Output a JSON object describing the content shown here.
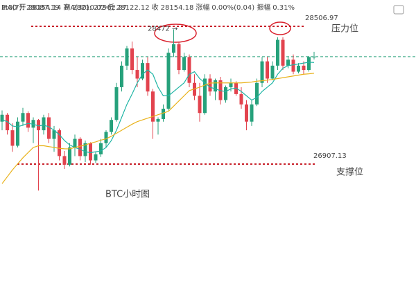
{
  "chart_data": {
    "type": "candlestick",
    "header": {
      "time": "2:00",
      "fields": [
        {
          "label": "开",
          "value": 28154.14
        },
        {
          "label": "高",
          "value": 28210.02
        },
        {
          "label": "低",
          "value": 28122.12
        },
        {
          "label": "收",
          "value": 28154.18
        },
        {
          "label": "涨幅",
          "value": "0.00%(0.04)"
        },
        {
          "label": "振幅",
          "value": "0.31%"
        }
      ]
    },
    "up_color": "#26a17b",
    "down_color": "#e2434e",
    "ohlc": [
      [
        27400,
        27530,
        27300,
        27480
      ],
      [
        27480,
        27500,
        27250,
        27300
      ],
      [
        27300,
        27380,
        27050,
        27120
      ],
      [
        27120,
        27450,
        27100,
        27400
      ],
      [
        27400,
        27560,
        27350,
        27500
      ],
      [
        27500,
        27520,
        27280,
        27330
      ],
      [
        27330,
        27450,
        27150,
        27420
      ],
      [
        27420,
        27430,
        26600,
        27300
      ],
      [
        27300,
        27480,
        27250,
        27450
      ],
      [
        27450,
        27500,
        27150,
        27200
      ],
      [
        27200,
        27350,
        27050,
        27300
      ],
      [
        27300,
        27320,
        26950,
        27000
      ],
      [
        27000,
        27060,
        26850,
        26900
      ],
      [
        26900,
        27150,
        26880,
        27100
      ],
      [
        27100,
        27250,
        27000,
        27200
      ],
      [
        27200,
        27220,
        26950,
        27000
      ],
      [
        27000,
        27180,
        26930,
        27150
      ],
      [
        27150,
        27160,
        26900,
        26950
      ],
      [
        26950,
        27050,
        26920,
        27020
      ],
      [
        27020,
        27200,
        26990,
        27150
      ],
      [
        27150,
        27300,
        27100,
        27280
      ],
      [
        27280,
        27450,
        27250,
        27420
      ],
      [
        27420,
        27850,
        27400,
        27800
      ],
      [
        27800,
        28100,
        27750,
        28050
      ],
      [
        28050,
        28280,
        28000,
        28250
      ],
      [
        28250,
        28330,
        27950,
        28000
      ],
      [
        28000,
        28150,
        27800,
        27900
      ],
      [
        27900,
        28120,
        27880,
        28080
      ],
      [
        28080,
        28150,
        27700,
        27750
      ],
      [
        27750,
        27780,
        27200,
        27400
      ],
      [
        27400,
        27450,
        27250,
        27430
      ],
      [
        27430,
        27600,
        27400,
        27550
      ],
      [
        27550,
        28250,
        27530,
        28200
      ],
      [
        28200,
        28472,
        28150,
        28300
      ],
      [
        28300,
        28320,
        27950,
        28000
      ],
      [
        28000,
        28200,
        27980,
        28150
      ],
      [
        28150,
        28180,
        27800,
        27850
      ],
      [
        27850,
        27950,
        27650,
        27700
      ],
      [
        27700,
        27850,
        27400,
        27500
      ],
      [
        27500,
        27950,
        27480,
        27900
      ],
      [
        27900,
        27950,
        27700,
        27750
      ],
      [
        27750,
        27900,
        27650,
        27880
      ],
      [
        27880,
        27920,
        27600,
        27650
      ],
      [
        27650,
        27820,
        27620,
        27800
      ],
      [
        27800,
        27900,
        27750,
        27850
      ],
      [
        27850,
        27870,
        27700,
        27720
      ],
      [
        27720,
        27800,
        27550,
        27600
      ],
      [
        27600,
        27650,
        27300,
        27400
      ],
      [
        27400,
        27650,
        27350,
        27600
      ],
      [
        27600,
        27900,
        27580,
        27850
      ],
      [
        27850,
        28150,
        27800,
        28100
      ],
      [
        28100,
        28150,
        27850,
        27900
      ],
      [
        27900,
        28100,
        27880,
        28050
      ],
      [
        28050,
        28380,
        28000,
        28350
      ],
      [
        28350,
        28380,
        28000,
        28050
      ],
      [
        28050,
        28150,
        28020,
        28120
      ],
      [
        28120,
        28180,
        27950,
        27980
      ],
      [
        27980,
        28080,
        27960,
        28050
      ],
      [
        28050,
        28100,
        27950,
        28000
      ],
      [
        28000,
        28160,
        27980,
        28150
      ],
      [
        28154.14,
        28210.02,
        28122.12,
        28154.18
      ]
    ],
    "series": [
      {
        "name": "MA(7):",
        "color": "#1fb5a5",
        "values": [
          27420,
          27400,
          27350,
          27340,
          27360,
          27380,
          27370,
          27350,
          27360,
          27340,
          27300,
          27250,
          27180,
          27130,
          27100,
          27080,
          27050,
          27040,
          27050,
          27060,
          27100,
          27180,
          27300,
          27450,
          27600,
          27720,
          27850,
          27950,
          28000,
          27950,
          27800,
          27700,
          27700,
          27750,
          27800,
          27850,
          27950,
          27980,
          27900,
          27850,
          27800,
          27780,
          27760,
          27750,
          27780,
          27790,
          27750,
          27700,
          27650,
          27680,
          27750,
          27800,
          27850,
          27950,
          28020,
          28050,
          28060,
          28070,
          28080,
          28090,
          28087.19
        ]
      },
      {
        "name": "MA(30):",
        "color": "#e9b21a",
        "values": [
          26680,
          26760,
          26840,
          26910,
          26980,
          27040,
          27100,
          27120,
          27120,
          27110,
          27100,
          27090,
          27085,
          27084,
          27100,
          27115,
          27130,
          27150,
          27165,
          27185,
          27200,
          27230,
          27265,
          27300,
          27335,
          27370,
          27400,
          27420,
          27440,
          27460,
          27480,
          27500,
          27520,
          27580,
          27640,
          27700,
          27760,
          27780,
          27800,
          27825,
          27848,
          27850,
          27850,
          27850,
          27850,
          27850,
          27850,
          27855,
          27860,
          27870,
          27875,
          27882,
          27890,
          27900,
          27910,
          27920,
          27930,
          27940,
          27950,
          27955,
          27962.27
        ]
      }
    ],
    "resistance": {
      "label": "压力位",
      "value": 28506.97
    },
    "support": {
      "label": "支撑位",
      "value": 26907.13
    },
    "peak": {
      "value": 28472,
      "label": "28472 →"
    },
    "caption": "BTC小时图"
  }
}
